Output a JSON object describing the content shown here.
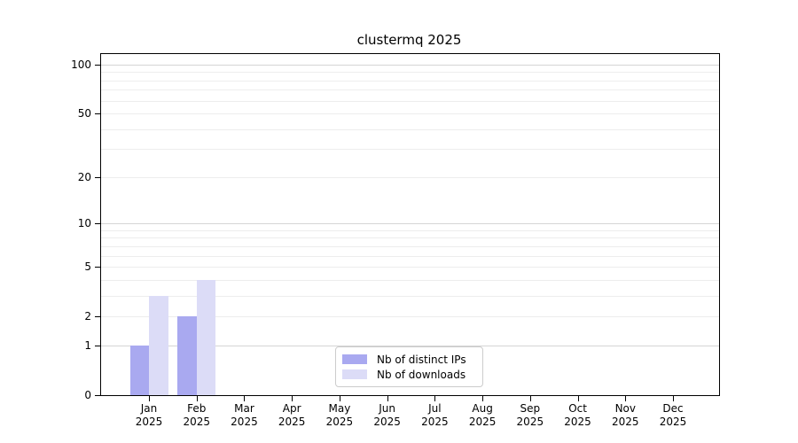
{
  "chart_data": {
    "type": "bar",
    "title": "clustermq 2025",
    "categories": [
      "Jan",
      "Feb",
      "Mar",
      "Apr",
      "May",
      "Jun",
      "Jul",
      "Aug",
      "Sep",
      "Oct",
      "Nov",
      "Dec"
    ],
    "x_tick_year": "2025",
    "series": [
      {
        "name": "Nb of distinct IPs",
        "color": "#a9a9f0",
        "values": [
          1,
          2,
          0,
          0,
          0,
          0,
          0,
          0,
          0,
          0,
          0,
          0
        ]
      },
      {
        "name": "Nb of downloads",
        "color": "#dcdcf7",
        "values": [
          3,
          4,
          0,
          0,
          0,
          0,
          0,
          0,
          0,
          0,
          0,
          0
        ]
      }
    ],
    "y_scale": "log10(value+1)",
    "ylim": [
      0,
      101
    ],
    "y_tick_values": [
      100,
      50,
      20,
      10,
      5,
      2,
      1,
      0
    ],
    "y_tick_labels": [
      "100",
      "50",
      "20",
      "10",
      "5",
      "2",
      "1",
      "0"
    ],
    "grid_minor_values": [
      2,
      3,
      4,
      5,
      6,
      7,
      8,
      9,
      20,
      30,
      40,
      50,
      60,
      70,
      80,
      90
    ],
    "grid_major_values": [
      1,
      10,
      100
    ],
    "legend_position": "bottom-center",
    "colors": {
      "grid_minor": "#ededed",
      "grid_major": "#d5d5d5",
      "spine": "#000000",
      "background": "#ffffff"
    }
  }
}
